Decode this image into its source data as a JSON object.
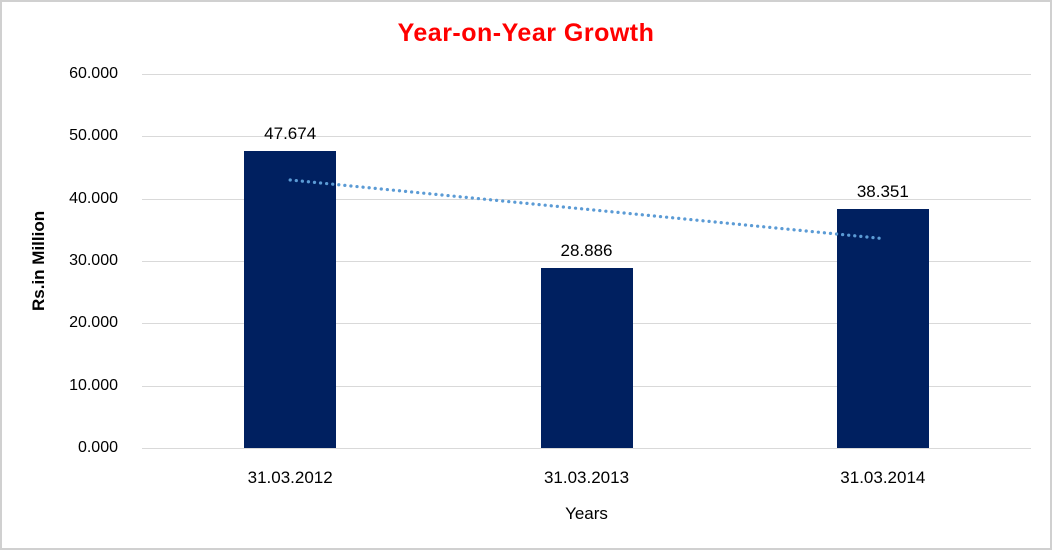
{
  "window": {
    "background_color": "#ffffff",
    "border_color": "#d0d0d0"
  },
  "chart_data": {
    "type": "bar",
    "title": "Year-on-Year Growth",
    "title_color": "#ff0000",
    "xlabel": "Years",
    "ylabel": "Rs.in Million",
    "categories": [
      "31.03.2012",
      "31.03.2013",
      "31.03.2014"
    ],
    "values": [
      47.674,
      28.886,
      38.351
    ],
    "value_labels": [
      "47.674",
      "28.886",
      "38.351"
    ],
    "ylim": [
      0,
      60
    ],
    "grid": true,
    "legend": "none",
    "y_ticks": [
      {
        "value": 60,
        "label": "60.000"
      },
      {
        "value": 50,
        "label": "50.000"
      },
      {
        "value": 40,
        "label": "40.000"
      },
      {
        "value": 30,
        "label": "30.000"
      },
      {
        "value": 20,
        "label": "20.000"
      },
      {
        "value": 10,
        "label": "10.000"
      },
      {
        "value": 0,
        "label": "0.000"
      }
    ],
    "bar_color": "#002060",
    "gridline_color": "#d9d9d9",
    "trendline": {
      "type": "linear",
      "style": "dotted",
      "color": "#5b9bd5",
      "start_value": 43.0,
      "end_value": 33.6
    }
  }
}
